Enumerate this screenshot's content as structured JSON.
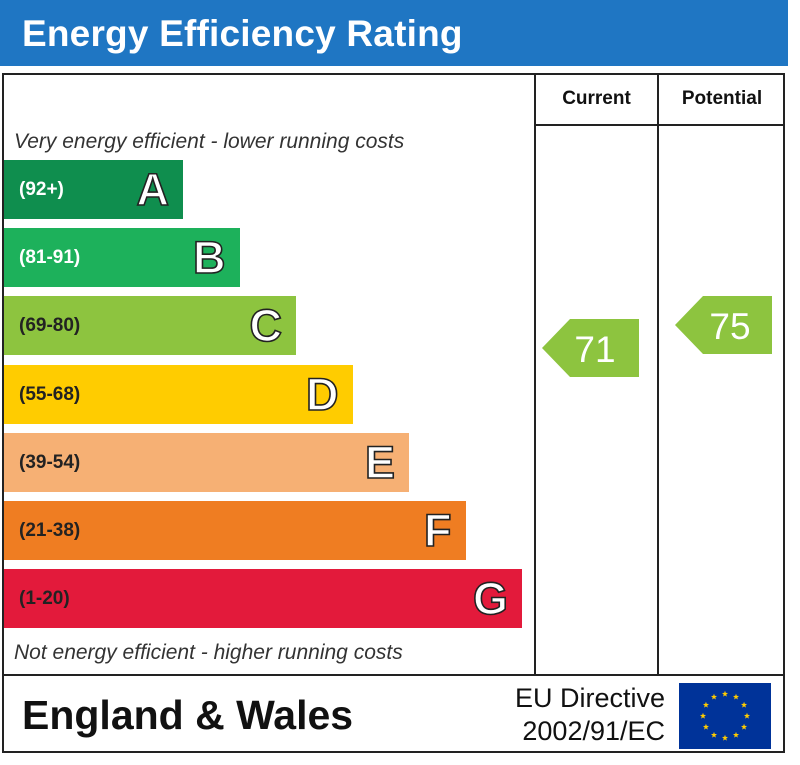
{
  "header": {
    "title": "Energy Efficiency Rating"
  },
  "columns": {
    "current": "Current",
    "potential": "Potential"
  },
  "captions": {
    "top": "Very energy efficient - lower running costs",
    "bottom": "Not energy efficient - higher running costs"
  },
  "footer": {
    "region": "England & Wales",
    "directive_line1": "EU Directive",
    "directive_line2": "2002/91/EC"
  },
  "chart_data": {
    "type": "bar",
    "title": "Energy Efficiency Rating",
    "bands": [
      {
        "letter": "A",
        "range": "(92+)",
        "min": 92,
        "max": 100,
        "color": "#0f8e4e",
        "text_color": "#ffffff"
      },
      {
        "letter": "B",
        "range": "(81-91)",
        "min": 81,
        "max": 91,
        "color": "#1db15b",
        "text_color": "#ffffff"
      },
      {
        "letter": "C",
        "range": "(69-80)",
        "min": 69,
        "max": 80,
        "color": "#8dc43f",
        "text_color": "#222222"
      },
      {
        "letter": "D",
        "range": "(55-68)",
        "min": 55,
        "max": 68,
        "color": "#ffcc00",
        "text_color": "#222222"
      },
      {
        "letter": "E",
        "range": "(39-54)",
        "min": 39,
        "max": 54,
        "color": "#f6b074",
        "text_color": "#222222"
      },
      {
        "letter": "F",
        "range": "(21-38)",
        "min": 21,
        "max": 38,
        "color": "#ef7d22",
        "text_color": "#222222"
      },
      {
        "letter": "G",
        "range": "(1-20)",
        "min": 1,
        "max": 20,
        "color": "#e31a3b",
        "text_color": "#222222"
      }
    ],
    "series": [
      {
        "name": "Current",
        "value": 71,
        "band": "C",
        "color": "#8dc43f"
      },
      {
        "name": "Potential",
        "value": 75,
        "band": "C",
        "color": "#8dc43f"
      }
    ]
  },
  "colors": {
    "title_bar": "#1f76c3",
    "flag_blue": "#003399",
    "flag_star": "#ffcc00"
  }
}
